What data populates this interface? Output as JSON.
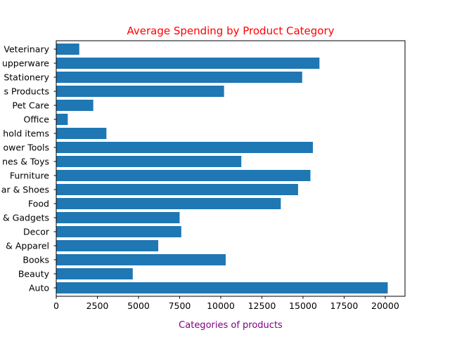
{
  "chart_data": {
    "type": "bar",
    "orientation": "horizontal",
    "title": "Average Spending by Product Category",
    "title_color": "#ff0000",
    "xlabel": "Categories of products",
    "xlabel_color": "#800080",
    "ylabel": "",
    "bar_color": "#1f77b4",
    "xlim": [
      0,
      21200
    ],
    "xticks": [
      0,
      2500,
      5000,
      7500,
      10000,
      12500,
      15000,
      17500,
      20000
    ],
    "xtick_labels": [
      "0",
      "2500",
      "5000",
      "7500",
      "10000",
      "12500",
      "15000",
      "17500",
      "20000"
    ],
    "grid": false,
    "legend": "none",
    "categories": [
      "Auto",
      "Beauty",
      "Books",
      "Clothing & Apparel",
      "Decor",
      "Electronics & Gadgets",
      "Food",
      "Footwear & Shoes",
      "Furniture",
      "Games & Toys",
      "Power Tools",
      "Household items",
      "Office",
      "Pet Care",
      "Wellness Products",
      "Stationery",
      "Tupperware",
      "Veterinary"
    ],
    "category_labels": [
      "Auto",
      "Beauty",
      "Books",
      "& Apparel",
      "Decor",
      "& Gadgets",
      "Food",
      "ar & Shoes",
      "Furniture",
      "nes & Toys",
      "ower Tools",
      "hold items",
      "Office",
      "Pet Care",
      "s Products",
      "Stationery",
      "upperware",
      "Veterinary"
    ],
    "values": [
      20150,
      4650,
      10300,
      6200,
      7600,
      7500,
      13650,
      14700,
      15450,
      11250,
      15600,
      3050,
      700,
      2250,
      10200,
      14950,
      16000,
      1400
    ]
  }
}
